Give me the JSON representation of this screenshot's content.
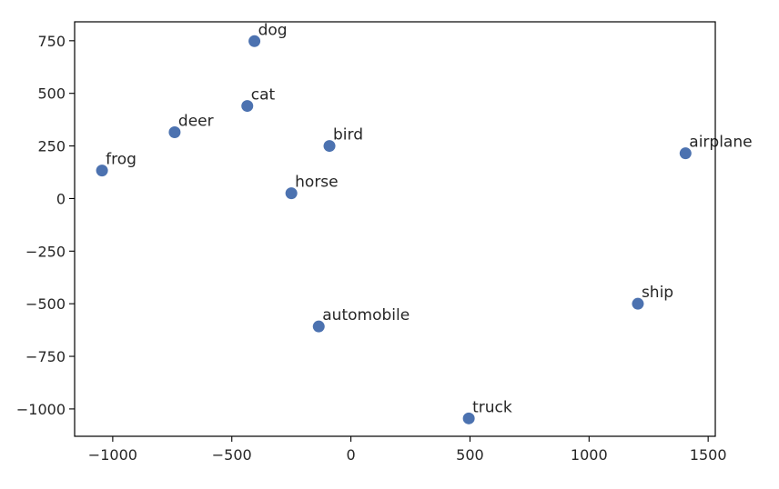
{
  "chart_data": {
    "type": "scatter",
    "title": "",
    "xlabel": "",
    "ylabel": "",
    "xlim": [
      -1160,
      1530
    ],
    "ylim": [
      -1130,
      840
    ],
    "xticks": [
      -1000,
      -500,
      0,
      500,
      1000,
      1500
    ],
    "yticks": [
      750,
      500,
      250,
      0,
      -250,
      -500,
      -750,
      -1000
    ],
    "xtick_labels": [
      "−1000",
      "−500",
      "0",
      "500",
      "1000",
      "1500"
    ],
    "ytick_labels": [
      "750",
      "500",
      "250",
      "0",
      "−250",
      "−500",
      "−750",
      "−1000"
    ],
    "grid": false,
    "marker_color": "#4c72b0",
    "points": [
      {
        "label": "dog",
        "x": -405,
        "y": 748
      },
      {
        "label": "cat",
        "x": -435,
        "y": 440
      },
      {
        "label": "deer",
        "x": -740,
        "y": 315
      },
      {
        "label": "bird",
        "x": -90,
        "y": 250
      },
      {
        "label": "frog",
        "x": -1045,
        "y": 133
      },
      {
        "label": "horse",
        "x": -250,
        "y": 25
      },
      {
        "label": "airplane",
        "x": 1405,
        "y": 215
      },
      {
        "label": "ship",
        "x": 1205,
        "y": -500
      },
      {
        "label": "automobile",
        "x": -135,
        "y": -608
      },
      {
        "label": "truck",
        "x": 495,
        "y": -1045
      }
    ]
  }
}
